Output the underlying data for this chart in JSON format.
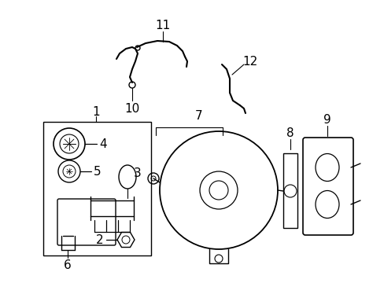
{
  "bg_color": "#ffffff",
  "line_color": "#000000",
  "fig_width": 4.89,
  "fig_height": 3.6,
  "dpi": 100,
  "font_size": 9,
  "label_font_size": 11
}
